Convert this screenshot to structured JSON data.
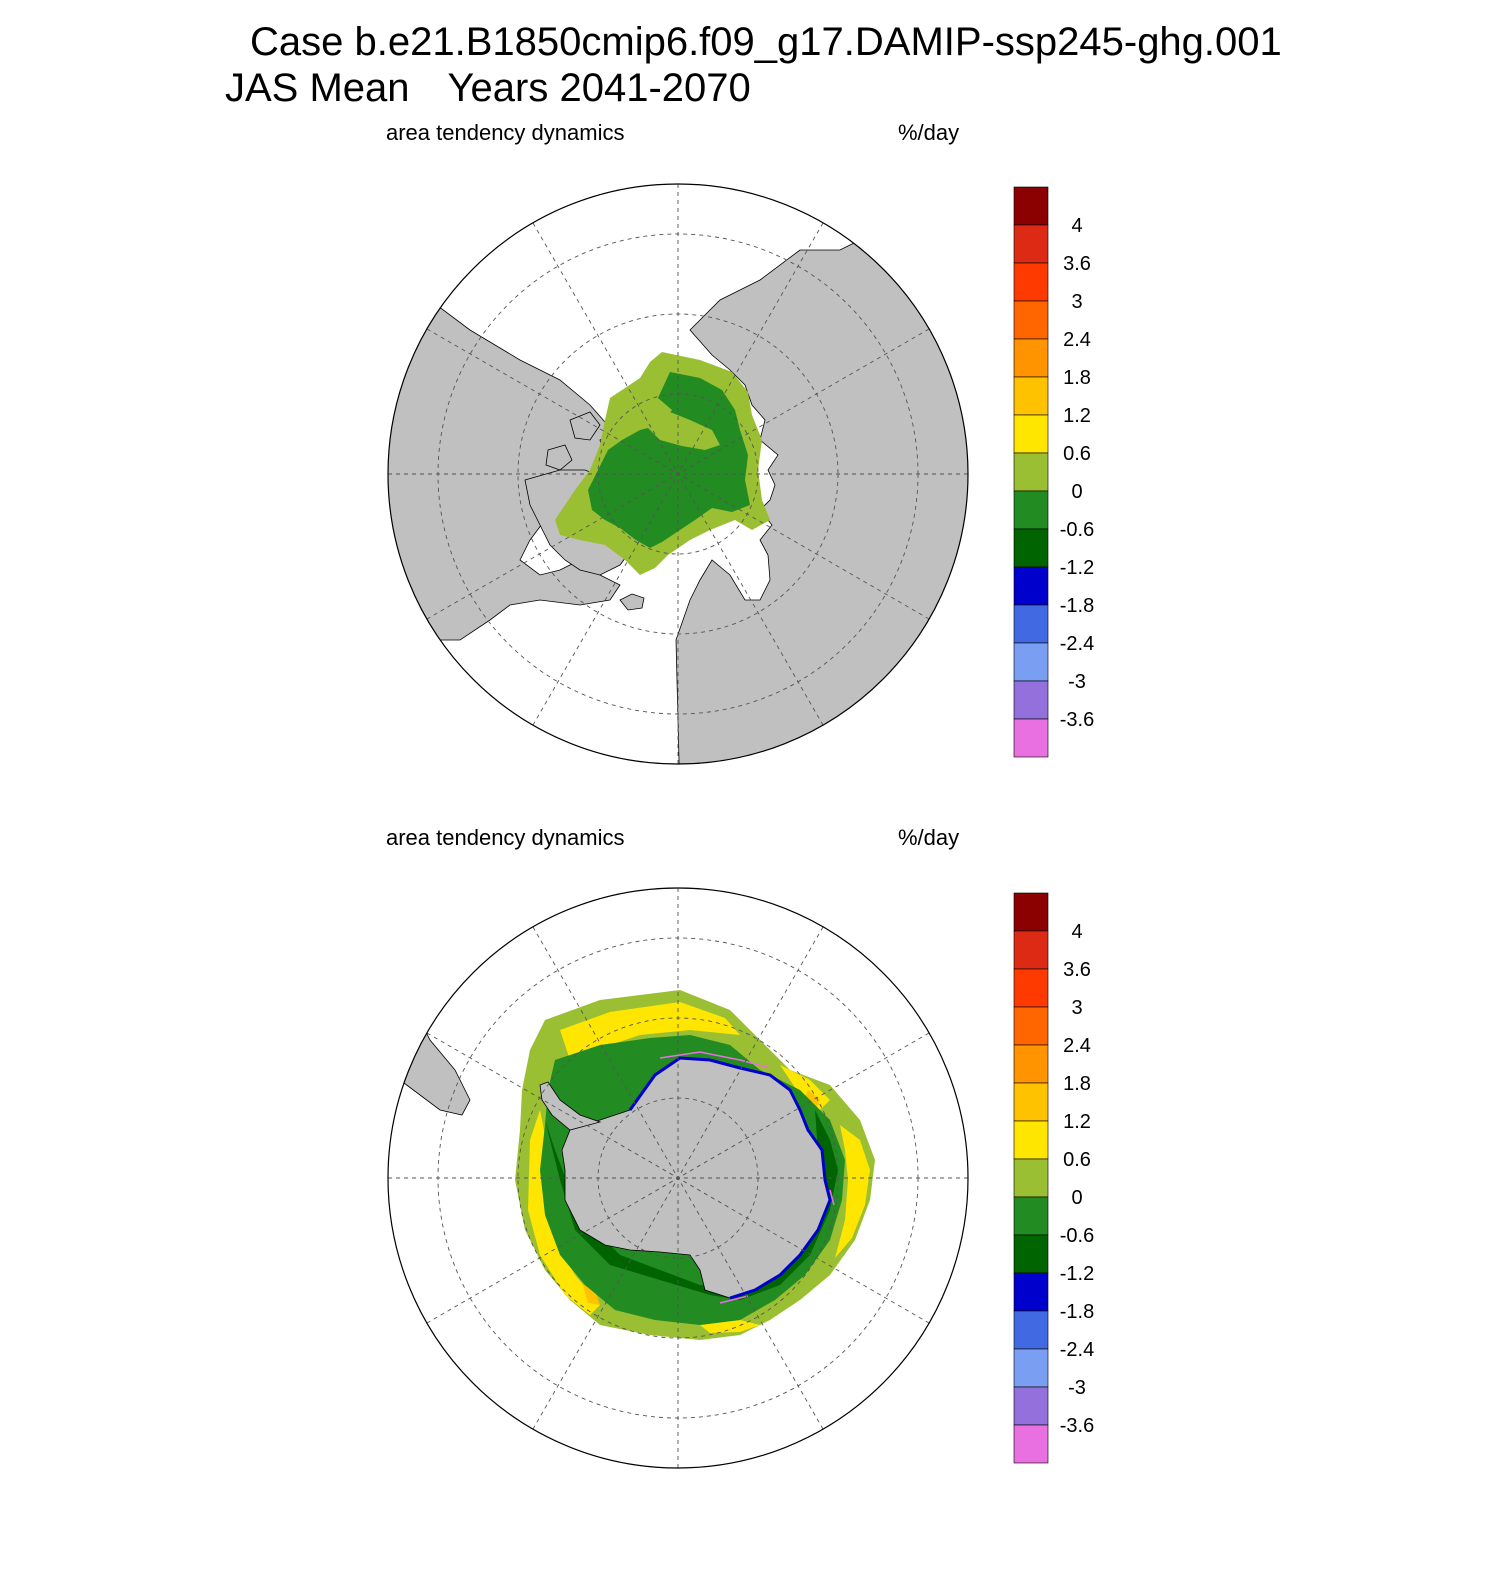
{
  "header": {
    "case_line": "Case b.e21.B1850cmip6.f09_g17.DAMIP-ssp245-ghg.001",
    "season": "JAS Mean",
    "years": "Years 2041-2070"
  },
  "colorbar": {
    "labels": [
      "4",
      "3.6",
      "3",
      "2.4",
      "1.8",
      "1.2",
      "0.6",
      "0",
      "-0.6",
      "-1.2",
      "-1.8",
      "-2.4",
      "-3",
      "-3.6"
    ],
    "colors": [
      "#8b0000",
      "#dc2a14",
      "#ff3a00",
      "#ff6600",
      "#ff9400",
      "#ffc200",
      "#ffe600",
      "#9bbf32",
      "#228b22",
      "#006400",
      "#0000cd",
      "#4169e1",
      "#7a9ef2",
      "#9370db",
      "#e870e0"
    ]
  },
  "land_color": "#c0c0c0",
  "panels": [
    {
      "id": "north",
      "hemisphere": "Northern",
      "label_left": "area tendency dynamics",
      "label_right": "%/day"
    },
    {
      "id": "south",
      "hemisphere": "Southern",
      "label_left": "area tendency dynamics",
      "label_right": "%/day"
    }
  ]
}
